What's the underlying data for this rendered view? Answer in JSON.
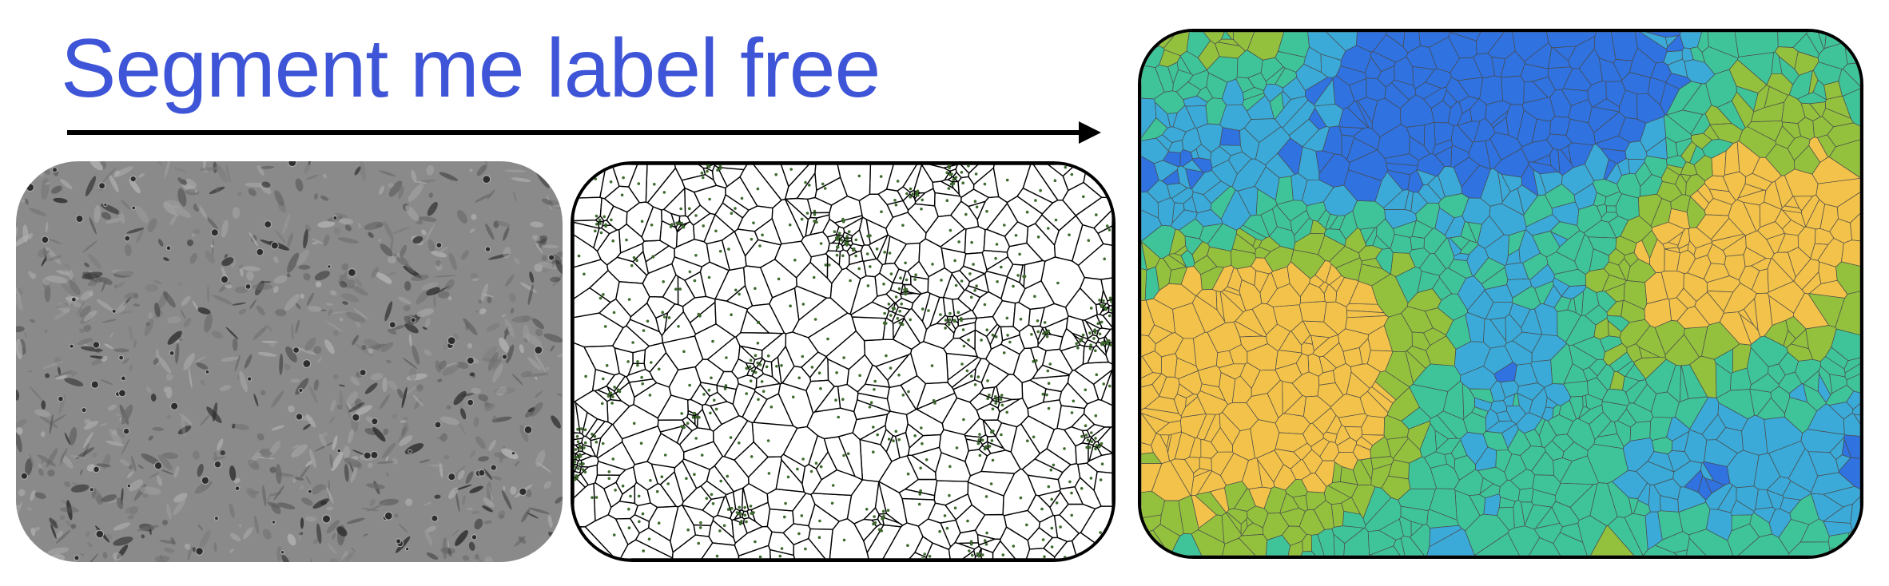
{
  "title": {
    "text": "Segment me label free",
    "color": "#3F55D8"
  },
  "arrow": {
    "color": "#000000"
  },
  "panels": {
    "raw_micrograph": {
      "background": "#8A8A8A",
      "cell_tones": [
        "#5E5E5E",
        "#6B6B6B",
        "#777777",
        "#A3A3A3",
        "#B0B0B0",
        "#2E2E2E"
      ]
    },
    "voronoi_sketch": {
      "background": "#FFFFFF",
      "edge_color": "#000000",
      "seed_color": "#3E6A2E"
    },
    "colored_segmentation": {
      "palette": [
        "#2F72E0",
        "#3BAAD8",
        "#3FC49A",
        "#93C13E",
        "#F2C24A"
      ],
      "edge_color": "#4A4A4A"
    }
  }
}
